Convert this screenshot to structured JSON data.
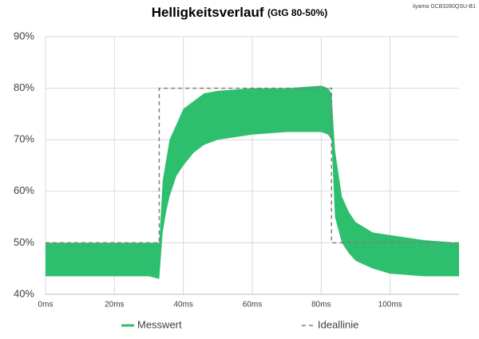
{
  "chart_data": {
    "type": "band",
    "title": "Helligkeitsverlauf",
    "subtitle": "(GtG 80-50%)",
    "annotation": "iiyama GCB3280QSU-B1",
    "xlim": [
      0,
      120
    ],
    "xticks": [
      {
        "value": 0,
        "label": "0ms"
      },
      {
        "value": 20,
        "label": "20ms"
      },
      {
        "value": 40,
        "label": "40ms"
      },
      {
        "value": 60,
        "label": "60ms"
      },
      {
        "value": 80,
        "label": "80ms"
      },
      {
        "value": 100,
        "label": "100ms"
      }
    ],
    "ylim": [
      40,
      90
    ],
    "yticks": [
      {
        "value": 40,
        "label": "40%"
      },
      {
        "value": 50,
        "label": "50%"
      },
      {
        "value": 60,
        "label": "60%"
      },
      {
        "value": 70,
        "label": "70%"
      },
      {
        "value": 80,
        "label": "80%"
      },
      {
        "value": 90,
        "label": "90%"
      }
    ],
    "grid": true,
    "series": [
      {
        "name": "Messwert",
        "color": "#2dbf6e",
        "x": [
          0,
          10,
          20,
          30,
          33,
          34,
          35,
          36,
          38,
          40,
          43,
          46,
          50,
          60,
          70,
          80,
          82,
          83,
          84,
          86,
          88,
          90,
          95,
          100,
          110,
          120
        ],
        "upper": [
          50,
          50,
          50,
          50,
          50,
          62,
          66,
          70,
          73,
          76,
          77.5,
          79,
          79.5,
          80,
          80,
          80.5,
          80,
          79,
          68,
          59,
          56,
          54,
          52,
          51.5,
          50.5,
          50
        ],
        "lower": [
          43.5,
          43.5,
          43.5,
          43.5,
          43,
          52,
          56,
          59,
          63,
          65,
          67.5,
          69,
          70,
          71,
          71.5,
          71.5,
          71,
          70,
          55,
          50,
          48,
          46.5,
          45,
          44,
          43.5,
          43.5
        ]
      },
      {
        "name": "Ideallinie",
        "color": "#7f7f7f",
        "dashed": true,
        "x": [
          0,
          33,
          33,
          83,
          83,
          120
        ],
        "values": [
          50,
          50,
          80,
          80,
          50,
          50
        ]
      }
    ]
  }
}
